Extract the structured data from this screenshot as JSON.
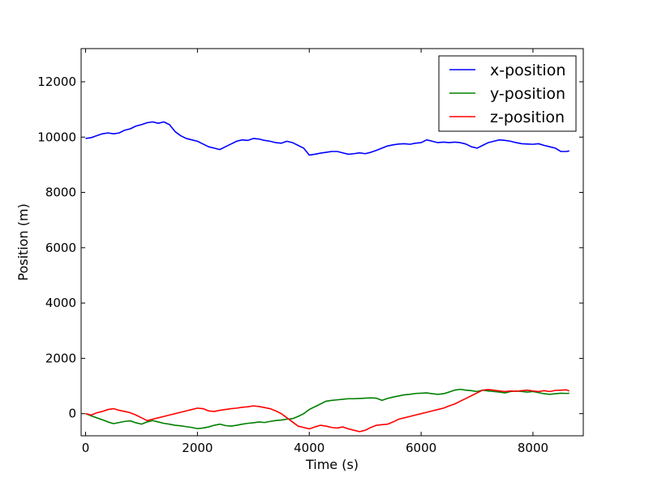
{
  "chart_data": {
    "type": "line",
    "title": "",
    "xlabel": "Time (s)",
    "ylabel": "Position (m)",
    "xlim": [
      -80,
      8900
    ],
    "ylim": [
      -800,
      13200
    ],
    "xticks": [
      0,
      2000,
      4000,
      6000,
      8000
    ],
    "yticks": [
      0,
      2000,
      4000,
      6000,
      8000,
      10000,
      12000
    ],
    "xtick_labels": [
      "0",
      "2000",
      "4000",
      "6000",
      "8000"
    ],
    "ytick_labels": [
      "0",
      "2000",
      "4000",
      "6000",
      "8000",
      "10000",
      "12000"
    ],
    "grid": false,
    "legend_position": "top-right",
    "series": [
      {
        "name": "x-position",
        "color": "#0000ff",
        "x": [
          0,
          100,
          200,
          300,
          400,
          500,
          600,
          700,
          800,
          900,
          1000,
          1100,
          1200,
          1300,
          1400,
          1500,
          1600,
          1700,
          1800,
          1900,
          2000,
          2100,
          2200,
          2300,
          2400,
          2500,
          2600,
          2700,
          2800,
          2900,
          3000,
          3100,
          3200,
          3300,
          3400,
          3500,
          3600,
          3700,
          3800,
          3900,
          4000,
          4100,
          4200,
          4300,
          4400,
          4500,
          4600,
          4700,
          4800,
          4900,
          5000,
          5100,
          5200,
          5300,
          5400,
          5500,
          5600,
          5700,
          5800,
          5900,
          6000,
          6100,
          6200,
          6300,
          6400,
          6500,
          6600,
          6700,
          6800,
          6900,
          7000,
          7100,
          7200,
          7300,
          7400,
          7500,
          7600,
          7700,
          7800,
          7900,
          8000,
          8100,
          8200,
          8300,
          8400,
          8500,
          8600,
          8650
        ],
        "y": [
          9950,
          9980,
          10050,
          10120,
          10150,
          10120,
          10150,
          10250,
          10300,
          10400,
          10450,
          10520,
          10550,
          10500,
          10550,
          10450,
          10200,
          10050,
          9950,
          9900,
          9850,
          9750,
          9650,
          9600,
          9550,
          9650,
          9750,
          9850,
          9900,
          9880,
          9950,
          9930,
          9880,
          9850,
          9800,
          9780,
          9850,
          9800,
          9700,
          9600,
          9350,
          9380,
          9420,
          9450,
          9480,
          9480,
          9430,
          9380,
          9400,
          9430,
          9400,
          9450,
          9520,
          9600,
          9680,
          9720,
          9750,
          9760,
          9740,
          9780,
          9800,
          9900,
          9850,
          9800,
          9820,
          9800,
          9820,
          9800,
          9750,
          9650,
          9600,
          9700,
          9800,
          9850,
          9900,
          9880,
          9850,
          9800,
          9760,
          9750,
          9740,
          9760,
          9700,
          9650,
          9600,
          9480,
          9480,
          9500
        ]
      },
      {
        "name": "y-position",
        "color": "#008000",
        "x": [
          0,
          100,
          200,
          300,
          400,
          500,
          600,
          700,
          800,
          900,
          1000,
          1100,
          1200,
          1300,
          1400,
          1500,
          1600,
          1700,
          1800,
          1900,
          2000,
          2100,
          2200,
          2300,
          2400,
          2500,
          2600,
          2700,
          2800,
          2900,
          3000,
          3100,
          3200,
          3300,
          3400,
          3500,
          3600,
          3700,
          3800,
          3900,
          4000,
          4100,
          4200,
          4300,
          4400,
          4500,
          4600,
          4700,
          4800,
          4900,
          5000,
          5100,
          5200,
          5300,
          5400,
          5500,
          5600,
          5700,
          5800,
          5900,
          6000,
          6100,
          6200,
          6300,
          6400,
          6500,
          6600,
          6700,
          6800,
          6900,
          7000,
          7100,
          7200,
          7300,
          7400,
          7500,
          7600,
          7700,
          7800,
          7900,
          8000,
          8100,
          8200,
          8300,
          8400,
          8500,
          8600,
          8650
        ],
        "y": [
          0,
          -80,
          -150,
          -220,
          -300,
          -360,
          -320,
          -280,
          -260,
          -330,
          -380,
          -300,
          -250,
          -300,
          -350,
          -380,
          -420,
          -440,
          -470,
          -500,
          -540,
          -520,
          -480,
          -420,
          -380,
          -430,
          -450,
          -420,
          -380,
          -350,
          -330,
          -300,
          -320,
          -280,
          -250,
          -230,
          -200,
          -180,
          -100,
          0,
          150,
          250,
          350,
          450,
          480,
          500,
          520,
          540,
          540,
          550,
          560,
          570,
          560,
          480,
          550,
          600,
          640,
          680,
          700,
          730,
          740,
          750,
          720,
          700,
          720,
          780,
          850,
          880,
          850,
          830,
          800,
          850,
          820,
          800,
          780,
          750,
          800,
          820,
          800,
          780,
          800,
          760,
          720,
          700,
          720,
          740,
          730,
          740
        ]
      },
      {
        "name": "z-position",
        "color": "#ff0000",
        "x": [
          0,
          100,
          200,
          300,
          400,
          500,
          600,
          700,
          800,
          900,
          1000,
          1100,
          1200,
          1300,
          1400,
          1500,
          1600,
          1700,
          1800,
          1900,
          2000,
          2100,
          2200,
          2300,
          2400,
          2500,
          2600,
          2700,
          2800,
          2900,
          3000,
          3100,
          3200,
          3300,
          3400,
          3500,
          3600,
          3700,
          3800,
          3900,
          4000,
          4100,
          4200,
          4300,
          4400,
          4500,
          4600,
          4700,
          4800,
          4900,
          5000,
          5100,
          5200,
          5300,
          5400,
          5500,
          5600,
          5700,
          5800,
          5900,
          6000,
          6100,
          6200,
          6300,
          6400,
          6500,
          6600,
          6700,
          6800,
          6900,
          7000,
          7100,
          7200,
          7300,
          7400,
          7500,
          7600,
          7700,
          7800,
          7900,
          8000,
          8100,
          8200,
          8300,
          8400,
          8500,
          8600,
          8650
        ],
        "y": [
          0,
          -50,
          30,
          80,
          150,
          180,
          120,
          80,
          30,
          -50,
          -150,
          -250,
          -200,
          -150,
          -100,
          -50,
          0,
          50,
          100,
          150,
          200,
          180,
          100,
          80,
          120,
          150,
          180,
          200,
          230,
          250,
          280,
          260,
          220,
          180,
          100,
          0,
          -150,
          -300,
          -450,
          -500,
          -550,
          -480,
          -420,
          -450,
          -500,
          -520,
          -480,
          -550,
          -600,
          -650,
          -600,
          -500,
          -420,
          -400,
          -380,
          -300,
          -200,
          -150,
          -100,
          -50,
          0,
          50,
          100,
          150,
          200,
          280,
          350,
          450,
          550,
          650,
          750,
          850,
          870,
          850,
          820,
          800,
          820,
          810,
          830,
          850,
          820,
          800,
          830,
          800,
          840,
          850,
          860,
          820
        ]
      }
    ]
  }
}
